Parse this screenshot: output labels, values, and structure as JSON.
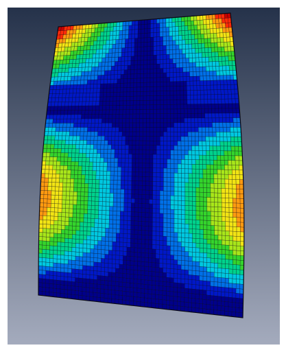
{
  "viewport": {
    "background": {
      "top": "#25324a",
      "bottom": "#a4abbd"
    }
  },
  "model": {
    "type": "deformed-plate-contour-plot",
    "colormap": [
      "#00008a",
      "#0018c8",
      "#0070e8",
      "#00c8e0",
      "#00d28c",
      "#34d42c",
      "#a8e61a",
      "#f2e414",
      "#ff9a10",
      "#ff2a08",
      "#c80000"
    ],
    "mesh_color": "#0a0a14",
    "visible_text": []
  }
}
